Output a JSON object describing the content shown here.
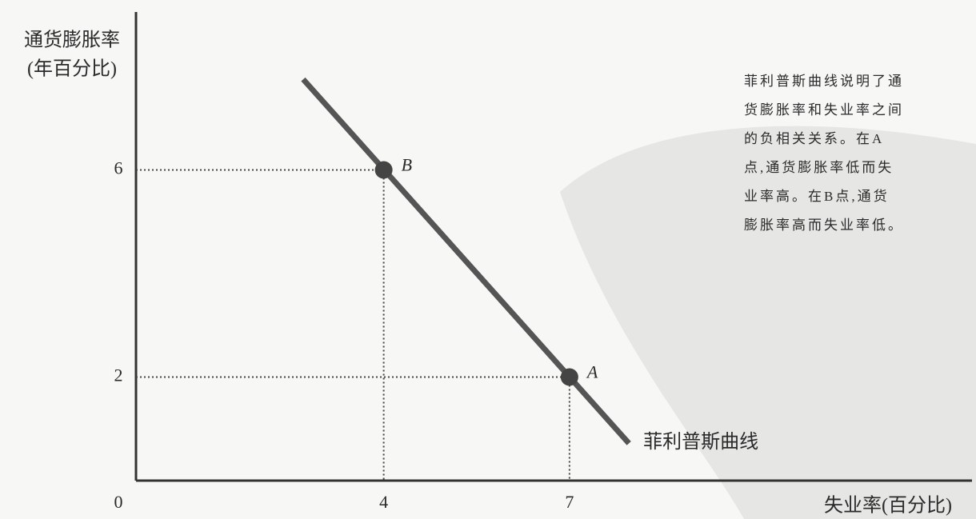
{
  "chart_data": {
    "type": "line",
    "y_label": [
      "通货膨胀率",
      "(年百分比)"
    ],
    "x_label": "失业率(百分比)",
    "annotation": [
      "菲利普斯曲线说明了通",
      "货膨胀率和失业率之间",
      "的负相关关系。在A",
      "点,通货膨胀率低而失",
      "业率高。在B点,通货",
      "膨胀率高而失业率低。"
    ],
    "series": [
      {
        "name": "菲利普斯曲线",
        "color": "#555555",
        "x": [
          2.7,
          7.96
        ],
        "values": [
          7.75,
          0.72
        ]
      }
    ],
    "points": [
      {
        "label": "B",
        "x": 4,
        "y": 6
      },
      {
        "label": "A",
        "x": 7,
        "y": 2
      }
    ],
    "point_color": "#444444",
    "guides": true,
    "xlim": [
      0,
      13.5
    ],
    "ylim": [
      0,
      9.05
    ],
    "xticks": [
      0,
      4,
      7
    ],
    "yticks": [
      2,
      6
    ]
  }
}
